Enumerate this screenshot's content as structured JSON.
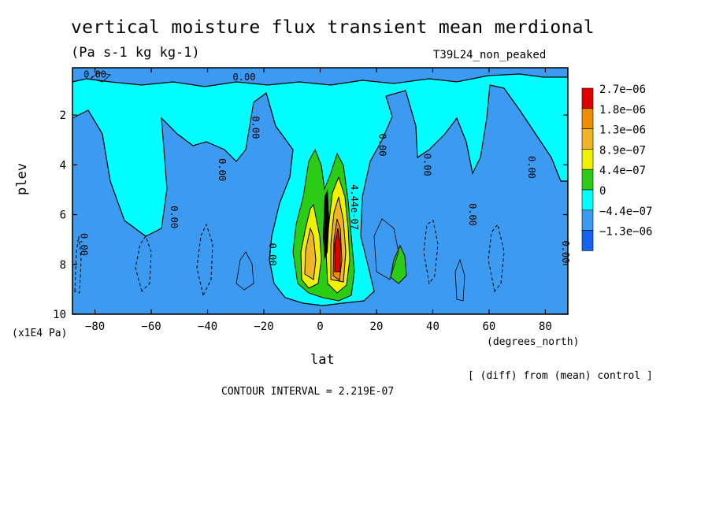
{
  "chart_data": {
    "type": "heatmap",
    "title": "vertical moisture flux transient mean merdional",
    "subtitle": "(Pa s-1 kg kg-1)",
    "run_label": "T39L24_non_peaked",
    "xlabel": "lat",
    "x_unit": "(degrees_north)",
    "ylabel": "plev",
    "y_unit": "(x1E4 Pa)",
    "xlim": [
      -88,
      88
    ],
    "ylim": [
      0.1,
      10
    ],
    "y_reversed": true,
    "x_ticks": [
      -80,
      -60,
      -40,
      -20,
      0,
      20,
      40,
      60,
      80
    ],
    "y_ticks": [
      2,
      4,
      6,
      8,
      10
    ],
    "legend": {
      "placement": "right",
      "levels": [
        {
          "label": "2.7e-06",
          "color": "#e00000"
        },
        {
          "label": "1.8e-06",
          "color": "#f08c00"
        },
        {
          "label": "1.3e-06",
          "color": "#f0b428"
        },
        {
          "label": "8.9e-07",
          "color": "#f0f000"
        },
        {
          "label": "4.4e-07",
          "color": "#2ccc16"
        },
        {
          "label": "0",
          "color": "#00ffff"
        },
        {
          "label": "-4.4e-07",
          "color": "#3c9af0"
        },
        {
          "label": "-1.3e-06",
          "color": "#1464f0"
        }
      ]
    },
    "contour_labels": [
      {
        "text": "0.00",
        "lat": -80,
        "plev": 0.5
      },
      {
        "text": "0.00",
        "lat": -27,
        "plev": 0.6
      },
      {
        "text": "0.00",
        "lat": -24,
        "plev": 2.5
      },
      {
        "text": "0.00",
        "lat": -36,
        "plev": 4.2
      },
      {
        "text": "0.00",
        "lat": -53,
        "plev": 6.1
      },
      {
        "text": "0.00",
        "lat": -85,
        "plev": 7.2
      },
      {
        "text": "0.00",
        "lat": -18,
        "plev": 7.6
      },
      {
        "text": "0.00",
        "lat": 21,
        "plev": 3.2
      },
      {
        "text": "0.00",
        "lat": 37,
        "plev": 4.0
      },
      {
        "text": "0.00",
        "lat": 53,
        "plev": 6.0
      },
      {
        "text": "0.00",
        "lat": 74,
        "plev": 4.1
      },
      {
        "text": "0.00",
        "lat": 86,
        "plev": 7.5
      },
      {
        "text": "4.44e-07",
        "lat": 11,
        "plev": 5.7
      }
    ],
    "footer_note": "[ (diff) from (mean) control ]",
    "contour_interval": "CONTOUR INTERVAL = 2.219E-07"
  }
}
